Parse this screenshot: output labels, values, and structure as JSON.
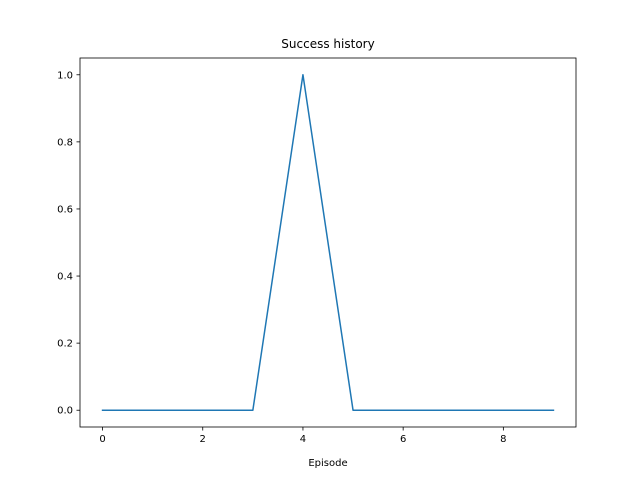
{
  "chart_data": {
    "type": "line",
    "title": "Success history",
    "xlabel": "Episode",
    "ylabel": "",
    "x": [
      0,
      1,
      2,
      3,
      4,
      5,
      6,
      7,
      8,
      9
    ],
    "series": [
      {
        "values": [
          0,
          0,
          0,
          0,
          1,
          0,
          0,
          0,
          0,
          0
        ],
        "color": "#1f77b4"
      }
    ],
    "xlim": [
      -0.45,
      9.45
    ],
    "ylim": [
      -0.05,
      1.05
    ],
    "xticks": [
      0,
      2,
      4,
      6,
      8
    ],
    "yticks": [
      0.0,
      0.2,
      0.4,
      0.6,
      0.8,
      1.0
    ],
    "xtick_labels": [
      "0",
      "2",
      "4",
      "6",
      "8"
    ],
    "ytick_labels": [
      "0.0",
      "0.2",
      "0.4",
      "0.6",
      "0.8",
      "1.0"
    ],
    "grid": false,
    "legend": "none"
  }
}
